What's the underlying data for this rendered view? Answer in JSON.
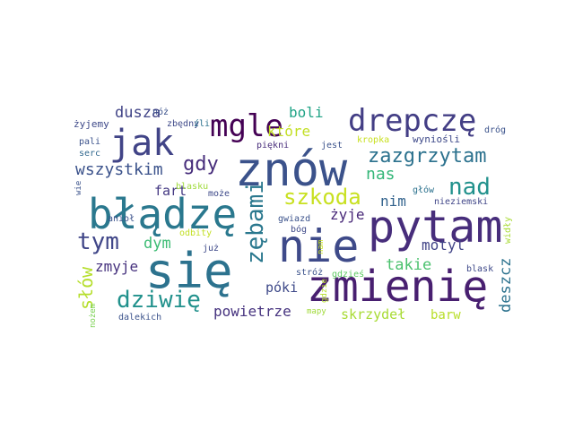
{
  "wordcloud": {
    "words": [
      {
        "id": "znow",
        "text": "znów",
        "color": "#3b528b"
      },
      {
        "id": "pytam",
        "text": "pytam",
        "color": "#472d7b"
      },
      {
        "id": "nie",
        "text": "nie",
        "color": "#3e4a89"
      },
      {
        "id": "sie",
        "text": "się",
        "color": "#2c728e"
      },
      {
        "id": "zmienie",
        "text": "zmienię",
        "color": "#481f70"
      },
      {
        "id": "bladze",
        "text": "błądzę",
        "color": "#2a788e"
      },
      {
        "id": "drepcze",
        "text": "drepczę",
        "color": "#433e85"
      },
      {
        "id": "jak",
        "text": "jak",
        "color": "#414487"
      },
      {
        "id": "mgle",
        "text": "mgle",
        "color": "#440154"
      },
      {
        "id": "zazgrzytam",
        "text": "zazgrzytam",
        "color": "#2c728e"
      },
      {
        "id": "nad",
        "text": "nad",
        "color": "#21918c"
      },
      {
        "id": "szkoda",
        "text": "szkoda",
        "color": "#c8e020"
      },
      {
        "id": "zebami",
        "text": "zębami",
        "color": "#2a788e"
      },
      {
        "id": "dziwie",
        "text": "dziwię",
        "color": "#21918c"
      },
      {
        "id": "tym",
        "text": "tym",
        "color": "#404688"
      },
      {
        "id": "gdy",
        "text": "gdy",
        "color": "#472d7b"
      },
      {
        "id": "wszystkim",
        "text": "wszystkim",
        "color": "#3b528b"
      },
      {
        "id": "dusza",
        "text": "dusza",
        "color": "#414487"
      },
      {
        "id": "slow",
        "text": "słów",
        "color": "#b5de2b"
      },
      {
        "id": "dym",
        "text": "dym",
        "color": "#3dbc74"
      },
      {
        "id": "zmyje",
        "text": "zmyje",
        "color": "#46327e"
      },
      {
        "id": "boli",
        "text": "boli",
        "color": "#20a386"
      },
      {
        "id": "ktore",
        "text": "które",
        "color": "#c2df23"
      },
      {
        "id": "nas",
        "text": "nas",
        "color": "#35b779"
      },
      {
        "id": "nim",
        "text": "nim",
        "color": "#33638d"
      },
      {
        "id": "zyje",
        "text": "żyje",
        "color": "#482878"
      },
      {
        "id": "fart",
        "text": "fart",
        "color": "#443983"
      },
      {
        "id": "motyl",
        "text": "motyl",
        "color": "#414487"
      },
      {
        "id": "takie",
        "text": "takie",
        "color": "#4ac16d"
      },
      {
        "id": "deszcz",
        "text": "deszcz",
        "color": "#2c728e"
      },
      {
        "id": "poki",
        "text": "póki",
        "color": "#3e4989"
      },
      {
        "id": "powietrze",
        "text": "powietrze",
        "color": "#46337f"
      },
      {
        "id": "skrzydel",
        "text": "skrzydeł",
        "color": "#a8db34"
      },
      {
        "id": "barw",
        "text": "barw",
        "color": "#b8de29"
      },
      {
        "id": "noz",
        "text": "nóż",
        "color": "#3b528b"
      },
      {
        "id": "zyjemy",
        "text": "żyjemy",
        "color": "#3e4989"
      },
      {
        "id": "zbedny",
        "text": "zbędny",
        "color": "#3e4989"
      },
      {
        "id": "pali",
        "text": "pali",
        "color": "#3b528b"
      },
      {
        "id": "serc",
        "text": "serc",
        "color": "#31688e"
      },
      {
        "id": "zli",
        "text": "źli",
        "color": "#2c728e"
      },
      {
        "id": "piekni",
        "text": "piękni",
        "color": "#472c7a"
      },
      {
        "id": "jest",
        "text": "jest",
        "color": "#3b528b"
      },
      {
        "id": "kropka",
        "text": "kropka",
        "color": "#c8e020"
      },
      {
        "id": "wyniosli",
        "text": "wyniośli",
        "color": "#3e4989"
      },
      {
        "id": "drog",
        "text": "dróg",
        "color": "#3b528b"
      },
      {
        "id": "glow",
        "text": "głów",
        "color": "#2c728e"
      },
      {
        "id": "wie",
        "text": "wie",
        "color": "#3b528b"
      },
      {
        "id": "blasku",
        "text": "blasku",
        "color": "#9fda3a"
      },
      {
        "id": "moze",
        "text": "może",
        "color": "#3e4989"
      },
      {
        "id": "aniol",
        "text": "anioł",
        "color": "#3b528b"
      },
      {
        "id": "odbity",
        "text": "odbity",
        "color": "#c2df23"
      },
      {
        "id": "juz",
        "text": "już",
        "color": "#3e4989"
      },
      {
        "id": "nozem",
        "text": "nożem",
        "color": "#7ad151"
      },
      {
        "id": "gwiazd",
        "text": "gwiazd",
        "color": "#3b528b"
      },
      {
        "id": "bog",
        "text": "bóg",
        "color": "#3e4989"
      },
      {
        "id": "niezmienski",
        "text": "nieziemski",
        "color": "#404688"
      },
      {
        "id": "widly",
        "text": "widły",
        "color": "#a8db34"
      },
      {
        "id": "nam",
        "text": "nam",
        "color": "#c8e020"
      },
      {
        "id": "stroz",
        "text": "stróż",
        "color": "#3b528b"
      },
      {
        "id": "gdzies",
        "text": "gdzieś",
        "color": "#5ec962"
      },
      {
        "id": "gdzie",
        "text": "gdzie",
        "color": "#b5de2b"
      },
      {
        "id": "blask",
        "text": "blask",
        "color": "#3e4989"
      },
      {
        "id": "dalekich",
        "text": "dalekich",
        "color": "#3b528b"
      },
      {
        "id": "mapy",
        "text": "mapy",
        "color": "#a0da39"
      }
    ]
  }
}
